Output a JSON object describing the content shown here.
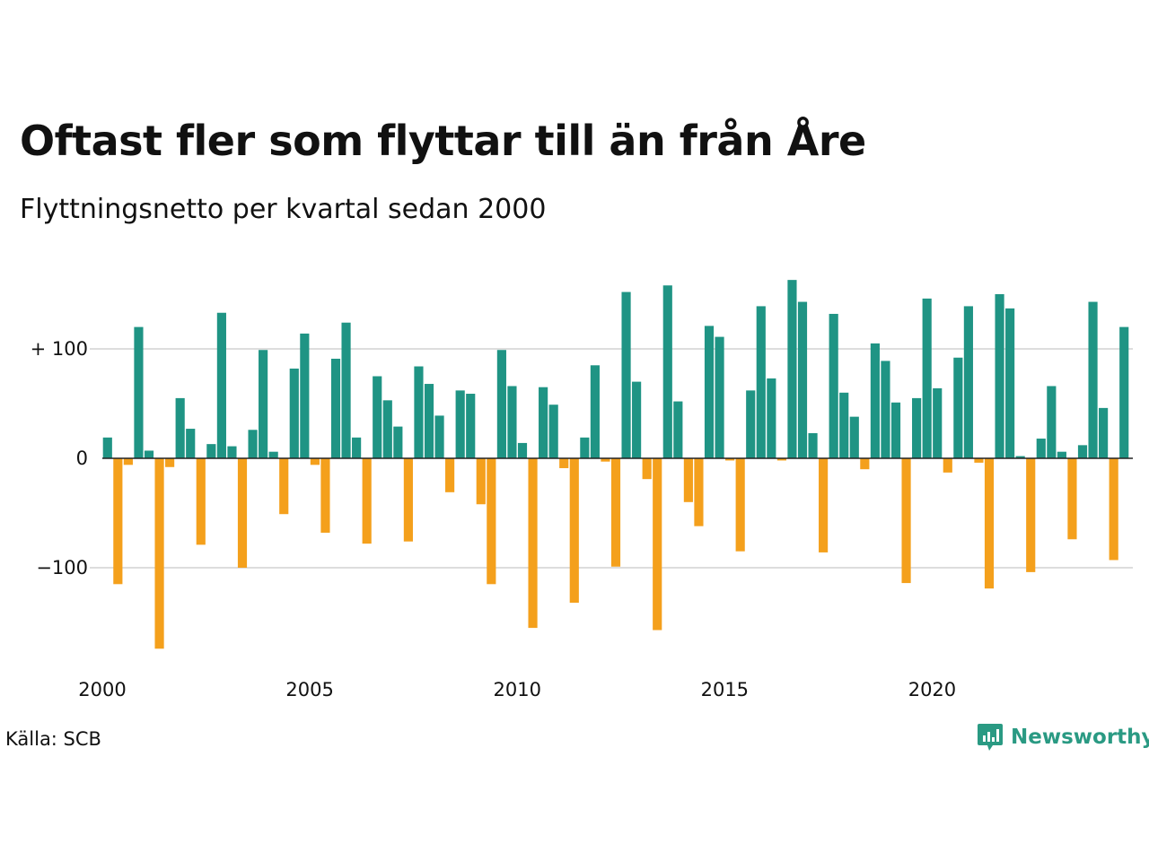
{
  "title": "Oftast fler som flyttar till än från Åre",
  "subtitle": "Flyttningsnetto per kvartal sedan 2000",
  "source": "Källa: SCB",
  "brand": {
    "name": "Newsworthy",
    "icon": "newsworthy-chart-bubble-icon",
    "color": "#2a9a83"
  },
  "colors": {
    "positive": "#1f9484",
    "negative": "#f4a01c",
    "grid": "#dddddd",
    "axis": "#222222"
  },
  "chart_data": {
    "type": "bar",
    "title": "Oftast fler som flyttar till än från Åre",
    "subtitle": "Flyttningsnetto per kvartal sedan 2000",
    "xlabel": "",
    "ylabel": "",
    "x_start": 2000,
    "periods_per_year": 4,
    "ylim": [
      -200,
      170
    ],
    "y_ticks": [
      {
        "value": 100,
        "label": "+ 100"
      },
      {
        "value": 0,
        "label": "0"
      },
      {
        "value": -100,
        "label": "−100"
      }
    ],
    "x_ticks": [
      {
        "year": 2000,
        "label": "2000"
      },
      {
        "year": 2005,
        "label": "2005"
      },
      {
        "year": 2010,
        "label": "2010"
      },
      {
        "year": 2015,
        "label": "2015"
      },
      {
        "year": 2020,
        "label": "2020"
      }
    ],
    "grid": true,
    "values": [
      19,
      -115,
      -6,
      120,
      7,
      -174,
      -8,
      55,
      27,
      -79,
      13,
      133,
      11,
      -100,
      26,
      99,
      6,
      -51,
      82,
      114,
      -6,
      -68,
      91,
      124,
      19,
      -78,
      75,
      53,
      29,
      -76,
      84,
      68,
      39,
      -31,
      62,
      59,
      -42,
      -115,
      99,
      66,
      14,
      -155,
      65,
      49,
      -9,
      -132,
      19,
      85,
      -3,
      -99,
      152,
      70,
      -19,
      -157,
      158,
      52,
      -40,
      -62,
      121,
      111,
      -2,
      -85,
      62,
      139,
      73,
      -2,
      163,
      143,
      23,
      -86,
      132,
      60,
      38,
      -10,
      105,
      89,
      51,
      -114,
      55,
      146,
      64,
      -13,
      92,
      139,
      -4,
      -119,
      150,
      137,
      2,
      -104,
      18,
      66,
      6,
      -74,
      12,
      143,
      46,
      -93,
      120
    ]
  }
}
